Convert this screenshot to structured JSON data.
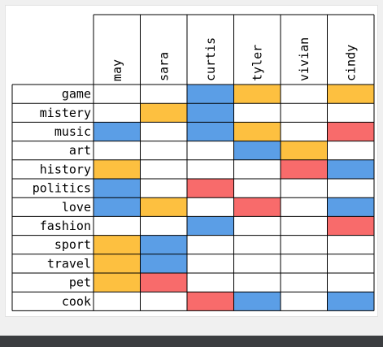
{
  "colors": {
    "blue": "#5b9ee6",
    "orange": "#fdc040",
    "red": "#f86b6b"
  },
  "chart_data": {
    "type": "heatmap",
    "columns": [
      "may",
      "sara",
      "curtis",
      "tyler",
      "vivian",
      "cindy"
    ],
    "rows": [
      "game",
      "mistery",
      "music",
      "art",
      "history",
      "politics",
      "love",
      "fashion",
      "sport",
      "travel",
      "pet",
      "cook"
    ],
    "cells": [
      [
        null,
        null,
        "blue",
        "orange",
        null,
        "orange"
      ],
      [
        null,
        "orange",
        "blue",
        null,
        null,
        null
      ],
      [
        "blue",
        null,
        "blue",
        "orange",
        null,
        "red"
      ],
      [
        null,
        null,
        null,
        "blue",
        "orange",
        null
      ],
      [
        "orange",
        null,
        null,
        null,
        "red",
        "blue"
      ],
      [
        "blue",
        null,
        "red",
        null,
        null,
        null
      ],
      [
        "blue",
        "orange",
        null,
        "red",
        null,
        "blue"
      ],
      [
        null,
        null,
        "blue",
        null,
        null,
        "red"
      ],
      [
        "orange",
        "blue",
        null,
        null,
        null,
        null
      ],
      [
        "orange",
        "blue",
        null,
        null,
        null,
        null
      ],
      [
        "orange",
        "red",
        null,
        null,
        null,
        null
      ],
      [
        null,
        null,
        "red",
        "blue",
        null,
        "blue"
      ]
    ]
  }
}
